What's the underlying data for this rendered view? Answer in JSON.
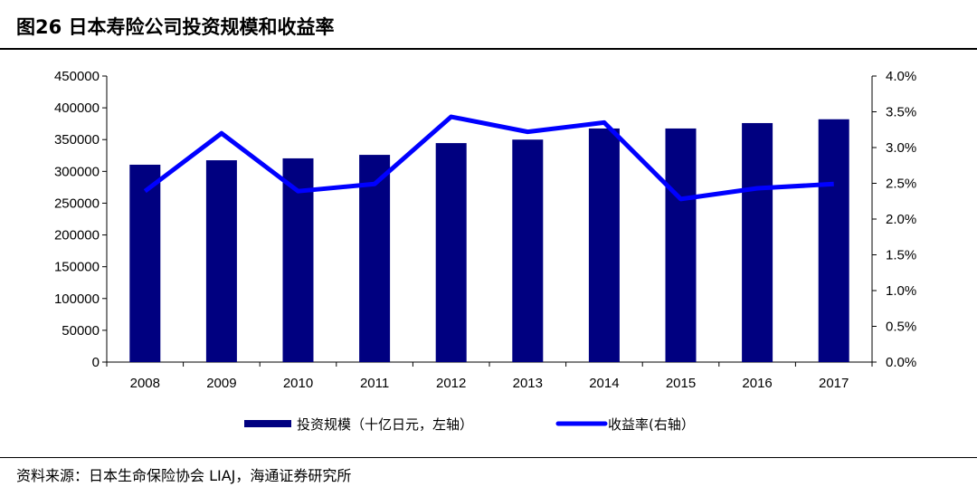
{
  "title": "图26 日本寿险公司投资规模和收益率",
  "source": "资料来源：日本生命保险协会 LIAJ，海通证券研究所",
  "chart_data": {
    "type": "bar+line",
    "categories": [
      "2008",
      "2009",
      "2010",
      "2011",
      "2012",
      "2013",
      "2014",
      "2015",
      "2016",
      "2017"
    ],
    "series": [
      {
        "name": "投资规模（十亿日元，左轴）",
        "type": "bar",
        "axis": "left",
        "color": "#000080",
        "values": [
          310500,
          317500,
          320500,
          326000,
          344500,
          350000,
          367500,
          367500,
          376000,
          382000
        ]
      },
      {
        "name": "收益率(右轴）",
        "type": "line",
        "axis": "right",
        "color": "#0000ff",
        "values": [
          2.39,
          3.2,
          2.39,
          2.49,
          3.43,
          3.22,
          3.35,
          2.28,
          2.43,
          2.49
        ]
      }
    ],
    "left_axis": {
      "min": 0,
      "max": 450000,
      "step": 50000,
      "ticks": [
        "0",
        "50000",
        "100000",
        "150000",
        "200000",
        "250000",
        "300000",
        "350000",
        "400000",
        "450000"
      ]
    },
    "right_axis": {
      "min": 0,
      "max": 4.0,
      "step": 0.5,
      "ticks": [
        "0.0%",
        "0.5%",
        "1.0%",
        "1.5%",
        "2.0%",
        "2.5%",
        "3.0%",
        "3.5%",
        "4.0%"
      ]
    },
    "legend_position": "bottom",
    "grid": false
  }
}
